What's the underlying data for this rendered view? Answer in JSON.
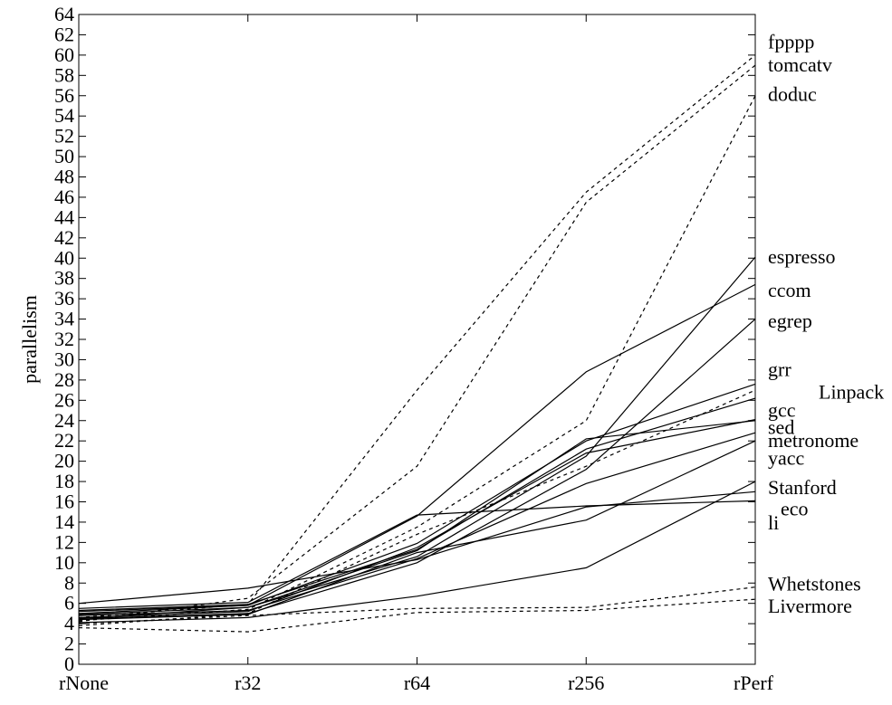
{
  "chart_data": {
    "type": "line",
    "title": "",
    "xlabel": "",
    "ylabel": "parallelism",
    "categories": [
      "rNone",
      "r32",
      "r64",
      "r256",
      "rPerf"
    ],
    "ylim": [
      0,
      64
    ],
    "ytick_step": 2,
    "grid": false,
    "legend": "right-edge labels",
    "series": [
      {
        "name": "fpppp",
        "style": "dashed",
        "values": [
          4.6,
          5.9,
          27.0,
          46.5,
          60.0
        ]
      },
      {
        "name": "tomcatv",
        "style": "dashed",
        "values": [
          4.2,
          6.5,
          19.5,
          45.5,
          59.0
        ]
      },
      {
        "name": "doduc",
        "style": "dashed",
        "values": [
          4.3,
          5.4,
          13.5,
          24.0,
          56.0
        ]
      },
      {
        "name": "espresso",
        "style": "solid",
        "values": [
          4.9,
          5.6,
          10.6,
          20.5,
          40.1
        ]
      },
      {
        "name": "ccom",
        "style": "solid",
        "values": [
          5.2,
          5.8,
          14.6,
          28.8,
          37.4
        ]
      },
      {
        "name": "egrep",
        "style": "solid",
        "values": [
          4.5,
          5.0,
          10.0,
          19.2,
          34.0
        ]
      },
      {
        "name": "grr",
        "style": "solid",
        "values": [
          5.0,
          5.8,
          11.9,
          22.0,
          27.6
        ]
      },
      {
        "name": "Linpack",
        "style": "dashed",
        "values": [
          3.8,
          5.0,
          12.8,
          19.5,
          27.0
        ]
      },
      {
        "name": "gcc",
        "style": "solid",
        "values": [
          5.3,
          5.9,
          11.3,
          21.2,
          26.2
        ]
      },
      {
        "name": "sed",
        "style": "solid",
        "values": [
          4.6,
          5.2,
          11.5,
          20.8,
          24.1
        ]
      },
      {
        "name": "metronome",
        "style": "solid",
        "values": [
          4.5,
          5.6,
          11.2,
          22.2,
          24.0
        ]
      },
      {
        "name": "yacc",
        "style": "solid",
        "values": [
          4.8,
          5.3,
          10.4,
          17.8,
          22.8
        ]
      },
      {
        "name": "Stanford",
        "style": "solid",
        "values": [
          4.4,
          4.9,
          11.0,
          14.2,
          22.0
        ]
      },
      {
        "name": "eco",
        "style": "solid",
        "values": [
          6.0,
          7.5,
          10.3,
          15.5,
          17.0
        ]
      },
      {
        "name": "li",
        "style": "solid",
        "values": [
          5.5,
          6.1,
          14.7,
          15.6,
          16.1
        ]
      },
      {
        "name": "",
        "style": "solid",
        "values": [
          4.1,
          4.6,
          6.7,
          9.5,
          18.0
        ]
      },
      {
        "name": "Whetstones",
        "style": "dashed",
        "values": [
          4.0,
          4.8,
          5.5,
          5.6,
          7.6
        ]
      },
      {
        "name": "Livermore",
        "style": "dashed",
        "values": [
          3.6,
          3.2,
          5.1,
          5.3,
          6.4
        ]
      }
    ],
    "series_labels": [
      {
        "text": "fpppp",
        "at": 61.3
      },
      {
        "text": "tomcatv",
        "at": 59.0
      },
      {
        "text": "doduc",
        "at": 56.1
      },
      {
        "text": "espresso",
        "at": 40.1
      },
      {
        "text": "ccom",
        "at": 36.8
      },
      {
        "text": "egrep",
        "at": 33.8
      },
      {
        "text": "grr",
        "at": 29.0
      },
      {
        "text": "Linpack",
        "at": 26.8
      },
      {
        "text": "gcc",
        "at": 25.0
      },
      {
        "text": "sed",
        "at": 23.3
      },
      {
        "text": "metronome",
        "at": 22.0
      },
      {
        "text": "yacc",
        "at": 20.3
      },
      {
        "text": "Stanford",
        "at": 17.4
      },
      {
        "text": "eco",
        "at": 15.3
      },
      {
        "text": "li",
        "at": 13.9
      },
      {
        "text": "Whetstones",
        "at": 7.9
      },
      {
        "text": "Livermore",
        "at": 5.7
      }
    ]
  }
}
